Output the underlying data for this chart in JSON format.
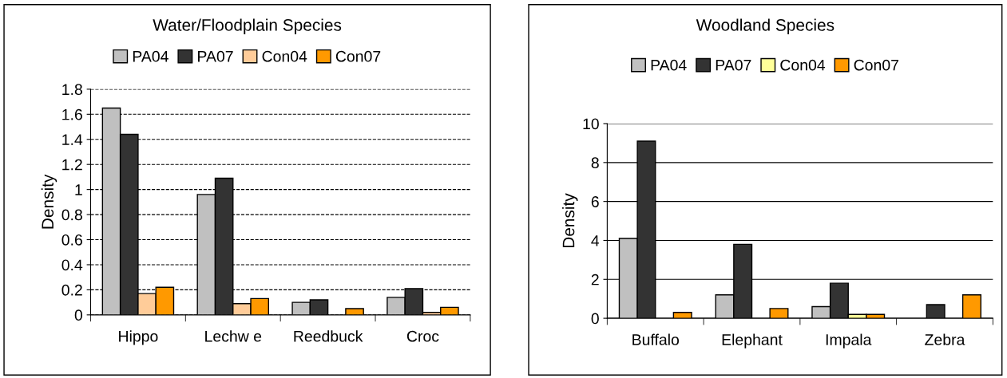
{
  "chart_data": [
    {
      "type": "bar",
      "title": "Water/Floodplain Species",
      "ylabel": "Density",
      "categories": [
        "Hippo",
        "Lechw e",
        "Reedbuck",
        "Croc"
      ],
      "series": [
        {
          "name": "PA04",
          "color": "#c0c0c0",
          "values": [
            1.65,
            0.96,
            0.1,
            0.14
          ]
        },
        {
          "name": "PA07",
          "color": "#333333",
          "values": [
            1.44,
            1.09,
            0.12,
            0.21
          ]
        },
        {
          "name": "Con04",
          "color": "#ffcc99",
          "values": [
            0.17,
            0.09,
            null,
            0.02
          ]
        },
        {
          "name": "Con07",
          "color": "#ff9900",
          "values": [
            0.22,
            0.13,
            0.05,
            0.06
          ]
        }
      ],
      "ylim": [
        0,
        1.8
      ],
      "yticks": [
        0,
        0.2,
        0.4,
        0.6,
        0.8,
        1,
        1.2,
        1.4,
        1.6,
        1.8
      ],
      "grid": "y",
      "legend": "top"
    },
    {
      "type": "bar",
      "title": "Woodland Species",
      "ylabel": "Density",
      "categories": [
        "Buffalo",
        "Elephant",
        "Impala",
        "Zebra"
      ],
      "series": [
        {
          "name": "PA04",
          "color": "#c0c0c0",
          "values": [
            4.1,
            1.2,
            0.6,
            null
          ]
        },
        {
          "name": "PA07",
          "color": "#333333",
          "values": [
            9.1,
            3.8,
            1.8,
            0.7
          ]
        },
        {
          "name": "Con04",
          "color": "#ffff99",
          "values": [
            null,
            null,
            0.2,
            null
          ]
        },
        {
          "name": "Con07",
          "color": "#ff9900",
          "values": [
            0.3,
            0.5,
            0.2,
            1.2
          ]
        }
      ],
      "ylim": [
        0,
        10
      ],
      "yticks": [
        0,
        2,
        4,
        6,
        8,
        10
      ],
      "grid": "y",
      "legend": "top"
    }
  ]
}
